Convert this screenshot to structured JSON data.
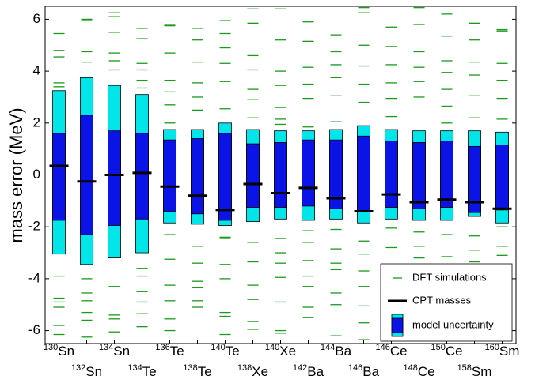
{
  "chart_data": {
    "type": "uncertainty-band",
    "y_label": "mass error (MeV)",
    "categories": [
      "130Sn",
      "132Sn",
      "134Sn",
      "134Te",
      "136Te",
      "138Te",
      "140Te",
      "138Xe",
      "140Xe",
      "142Ba",
      "144Ba",
      "146Ba",
      "146Ce",
      "148Ce",
      "150Ce",
      "158Sm",
      "160Sm"
    ],
    "ylim": [
      -6.5,
      6.5
    ],
    "yticks": [
      -6,
      -4,
      -2,
      0,
      2,
      4,
      6
    ],
    "legend": "lower right",
    "series": [
      {
        "name": "DFT simulations",
        "color": "#1a9a1a",
        "values": [
          [
            5.45,
            4.8,
            4.55,
            3.55,
            3.4,
            2.85,
            -3.9,
            -4.75,
            -4.9,
            -5.1,
            -5.8,
            -6.15
          ],
          [
            6.0,
            5.95,
            4.75,
            4.35,
            3.05,
            -4.0,
            -4.55,
            -4.85,
            -5.3,
            -5.6,
            -6.25
          ],
          [
            6.25,
            6.1,
            5.5,
            4.7,
            4.4,
            4.05,
            -4.3,
            -5.4,
            -5.55,
            -6.05
          ],
          [
            5.65,
            5.25,
            4.3,
            4.05,
            3.65,
            3.35,
            -3.6,
            -3.9,
            -4.5,
            -4.9,
            -5.35,
            -5.85
          ],
          [
            5.8,
            5.75,
            4.7,
            3.65,
            3.2,
            2.7,
            2.0,
            -2.3,
            -3.25,
            -4.25,
            -4.85,
            -5.55,
            -6.0
          ],
          [
            5.65,
            5.2,
            4.35,
            3.55,
            3.0,
            2.5,
            -2.75,
            -3.4,
            -4.1,
            -4.35,
            -4.85,
            -5.1
          ],
          [
            5.95,
            5.45,
            4.9,
            4.3,
            3.6,
            2.55,
            -2.4,
            -2.45,
            -3.45,
            -4.0,
            -5.3,
            -5.45,
            -6.15
          ],
          [
            6.4,
            5.85,
            4.6,
            4.05,
            3.3,
            2.9,
            2.2,
            -2.6,
            -3.35,
            -4.25,
            -4.8,
            -5.65,
            -5.95
          ],
          [
            6.4,
            5.2,
            4.0,
            3.45,
            2.6,
            2.15,
            1.95,
            -2.45,
            -3.0,
            -3.4,
            -3.95,
            -4.9,
            -6.0,
            -6.1
          ],
          [
            5.9,
            5.15,
            4.15,
            3.5,
            2.95,
            1.85,
            -2.15,
            -2.6,
            -3.3,
            -3.9,
            -4.3,
            -5.1,
            -5.5
          ],
          [
            5.4,
            4.75,
            4.25,
            3.75,
            3.05,
            2.05,
            -2.1,
            -2.85,
            -3.4,
            -3.65,
            -4.55,
            -5.0,
            -6.2
          ],
          [
            6.45,
            6.25,
            5.0,
            4.2,
            3.5,
            2.8,
            -2.55,
            -3.05,
            -3.7,
            -4.3,
            -5.05,
            -5.7,
            -6.35
          ],
          [
            5.7,
            4.95,
            4.25,
            3.55,
            2.95,
            2.25,
            -2.05,
            -2.8,
            -3.5,
            -3.85,
            -4.6,
            -5.3
          ],
          [
            6.45,
            5.8,
            4.75,
            4.15,
            3.6,
            3.0,
            -2.2,
            -2.75,
            -3.2,
            -4.35,
            -5.05,
            -5.7,
            -6.05
          ],
          [
            6.2,
            5.35,
            4.4,
            3.95,
            3.3,
            2.65,
            2.0,
            -2.3,
            -3.15,
            -3.45,
            -3.95,
            -4.35
          ],
          [
            5.85,
            5.2,
            4.35,
            3.85,
            3.05,
            2.2,
            -2.35,
            -2.9,
            -3.35,
            -3.75,
            -4.55,
            -5.05
          ],
          [
            5.6,
            5.55,
            4.3,
            3.65,
            2.95,
            2.15,
            -2.0,
            -2.75,
            -3.1,
            -3.45,
            -4.3,
            -4.9
          ]
        ]
      },
      {
        "name": "CPT masses",
        "color": "#000000",
        "values": [
          0.35,
          -0.25,
          0.0,
          0.08,
          -0.45,
          -0.8,
          -1.35,
          -0.35,
          -0.7,
          -0.5,
          -0.9,
          -1.4,
          -0.75,
          -1.05,
          -0.95,
          -1.05,
          -1.3
        ]
      },
      {
        "name": "model uncertainty",
        "color": "#00e5ea",
        "inner_color": "#0a14e6",
        "outer_high": [
          3.25,
          3.75,
          3.45,
          3.1,
          1.75,
          1.75,
          2.0,
          1.75,
          1.7,
          1.7,
          1.75,
          1.9,
          1.75,
          1.7,
          1.7,
          1.7,
          1.65
        ],
        "outer_low": [
          -3.05,
          -3.45,
          -3.2,
          -3.0,
          -1.85,
          -1.9,
          -1.95,
          -1.8,
          -1.7,
          -1.75,
          -1.7,
          -1.85,
          -1.7,
          -1.75,
          -1.75,
          -1.6,
          -1.85
        ],
        "inner_high": [
          1.6,
          2.3,
          1.7,
          1.6,
          1.35,
          1.4,
          1.6,
          1.2,
          1.25,
          1.35,
          1.35,
          1.5,
          1.3,
          1.25,
          1.3,
          1.1,
          1.15
        ],
        "inner_low": [
          -1.75,
          -2.3,
          -1.95,
          -1.7,
          -1.4,
          -1.5,
          -1.75,
          -1.25,
          -1.25,
          -1.2,
          -1.3,
          -1.4,
          -1.25,
          -1.3,
          -1.25,
          -1.45,
          -1.35
        ]
      }
    ]
  }
}
